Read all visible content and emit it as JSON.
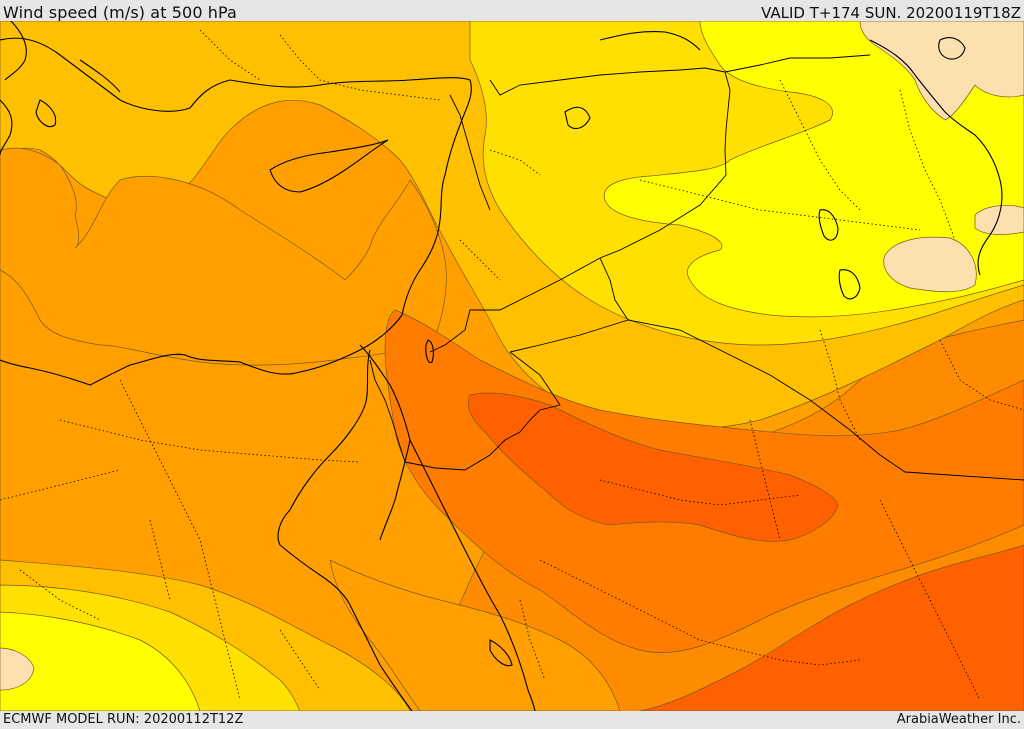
{
  "header": {
    "title": "Wind speed (m/s) at 500 hPa",
    "valid": "VALID T+174 SUN. 20200119T18Z"
  },
  "footer": {
    "model_run": "ECMWF MODEL RUN: 20200112T12Z",
    "credit": "ArabiaWeather Inc."
  },
  "map": {
    "field": "wind-speed-500hpa",
    "color_levels": [
      "#ffff00",
      "#ffe000",
      "#ffc000",
      "#ffa000",
      "#ff8c00",
      "#ff7c00",
      "#ff6000",
      "#fde0b0"
    ],
    "ocean_color": "#ffffff"
  }
}
